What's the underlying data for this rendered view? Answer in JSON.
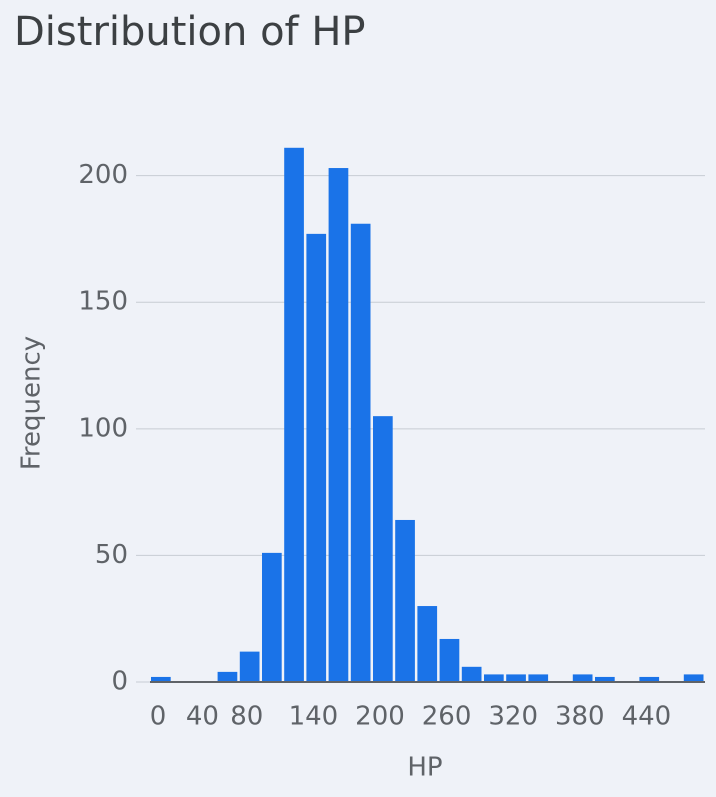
{
  "chart_data": {
    "type": "histogram",
    "title": "Distribution of HP",
    "x_label": "HP",
    "y_label": "Frequency",
    "bins": [
      0,
      20,
      40,
      60,
      80,
      100,
      120,
      140,
      160,
      180,
      200,
      220,
      240,
      260,
      280,
      300,
      320,
      340,
      360,
      380,
      400,
      420,
      440,
      460,
      480,
      500
    ],
    "values": [
      2,
      0,
      0,
      4,
      12,
      51,
      211,
      177,
      203,
      181,
      105,
      64,
      30,
      17,
      6,
      3,
      3,
      3,
      0,
      3,
      2,
      0,
      2,
      0,
      3
    ],
    "color": "#1a73e8",
    "xlim": [
      0,
      500
    ],
    "xticks": [
      0,
      40,
      80,
      140,
      200,
      260,
      320,
      380,
      440
    ],
    "ylim": [
      0,
      220
    ],
    "yticks": [
      0,
      50,
      100,
      150,
      200
    ],
    "grid": true
  }
}
